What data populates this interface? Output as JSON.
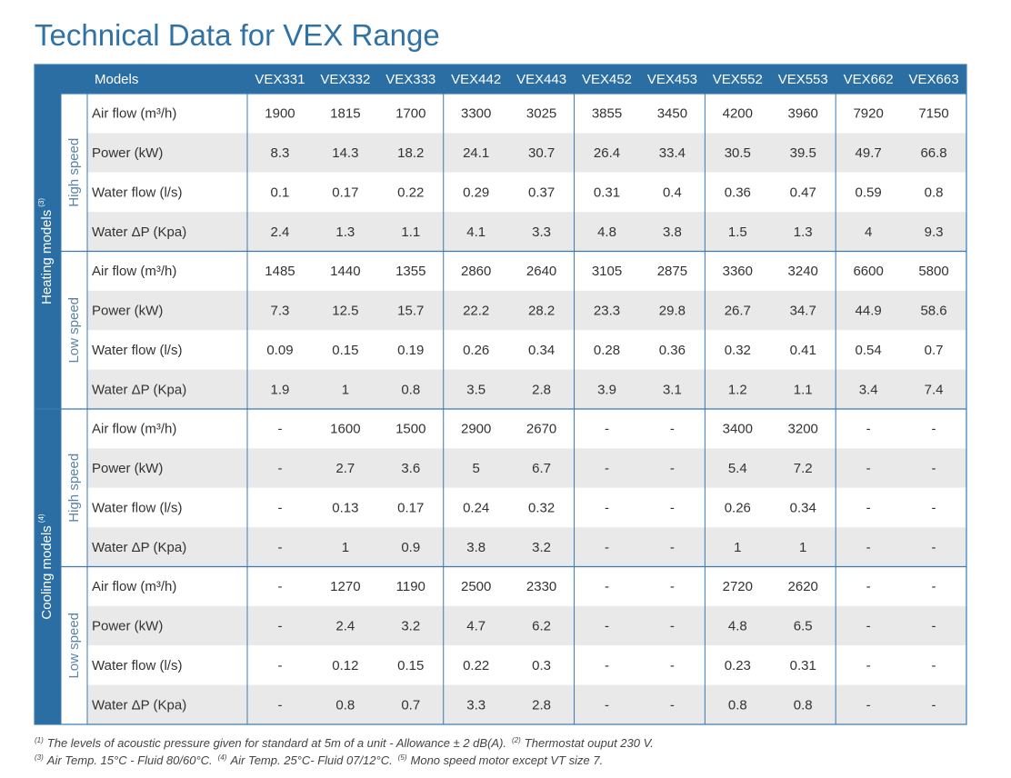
{
  "title": "Technical Data for VEX Range",
  "table": {
    "header": {
      "corner": "Models",
      "models": [
        "VEX331",
        "VEX332",
        "VEX333",
        "VEX442",
        "VEX443",
        "VEX452",
        "VEX453",
        "VEX552",
        "VEX553",
        "VEX662",
        "VEX663"
      ]
    },
    "groups": [
      {
        "label": "Heating models",
        "sup": "(3)",
        "speeds": [
          {
            "label": "High speed",
            "rows": [
              {
                "label": "Air flow (m³/h)",
                "values": [
                  1900,
                  1815,
                  1700,
                  3300,
                  3025,
                  3855,
                  3450,
                  4200,
                  3960,
                  7920,
                  7150
                ]
              },
              {
                "label": "Power (kW)",
                "values": [
                  8.3,
                  14.3,
                  18.2,
                  24.1,
                  30.7,
                  26.4,
                  33.4,
                  30.5,
                  39.5,
                  49.7,
                  66.8
                ]
              },
              {
                "label": "Water flow (l/s)",
                "values": [
                  0.1,
                  0.17,
                  0.22,
                  0.29,
                  0.37,
                  0.31,
                  0.4,
                  0.36,
                  0.47,
                  0.59,
                  0.8
                ]
              },
              {
                "label": "Water ΔP (Kpa)",
                "values": [
                  2.4,
                  1.3,
                  1.1,
                  4.1,
                  3.3,
                  4.8,
                  3.8,
                  1.5,
                  1.3,
                  4,
                  9.3
                ]
              }
            ]
          },
          {
            "label": "Low speed",
            "rows": [
              {
                "label": "Air flow (m³/h)",
                "values": [
                  1485,
                  1440,
                  1355,
                  2860,
                  2640,
                  3105,
                  2875,
                  3360,
                  3240,
                  6600,
                  5800
                ]
              },
              {
                "label": "Power (kW)",
                "values": [
                  7.3,
                  12.5,
                  15.7,
                  22.2,
                  28.2,
                  23.3,
                  29.8,
                  26.7,
                  34.7,
                  44.9,
                  58.6
                ]
              },
              {
                "label": "Water flow (l/s)",
                "values": [
                  0.09,
                  0.15,
                  0.19,
                  0.26,
                  0.34,
                  0.28,
                  0.36,
                  0.32,
                  0.41,
                  0.54,
                  0.7
                ]
              },
              {
                "label": "Water ΔP (Kpa)",
                "values": [
                  1.9,
                  1,
                  0.8,
                  3.5,
                  2.8,
                  3.9,
                  3.1,
                  1.2,
                  1.1,
                  3.4,
                  7.4
                ]
              }
            ]
          }
        ]
      },
      {
        "label": "Cooling models",
        "sup": "(4)",
        "speeds": [
          {
            "label": "High speed",
            "rows": [
              {
                "label": "Air flow (m³/h)",
                "values": [
                  "-",
                  1600,
                  1500,
                  2900,
                  2670,
                  "-",
                  "-",
                  3400,
                  3200,
                  "-",
                  "-"
                ]
              },
              {
                "label": "Power (kW)",
                "values": [
                  "-",
                  2.7,
                  3.6,
                  5,
                  6.7,
                  "-",
                  "-",
                  5.4,
                  7.2,
                  "-",
                  "-"
                ]
              },
              {
                "label": "Water flow (l/s)",
                "values": [
                  "-",
                  0.13,
                  0.17,
                  0.24,
                  0.32,
                  "-",
                  "-",
                  0.26,
                  0.34,
                  "-",
                  "-"
                ]
              },
              {
                "label": "Water ΔP (Kpa)",
                "values": [
                  "-",
                  1,
                  0.9,
                  3.8,
                  3.2,
                  "-",
                  "-",
                  1,
                  1,
                  "-",
                  "-"
                ]
              }
            ]
          },
          {
            "label": "Low speed",
            "rows": [
              {
                "label": "Air flow (m³/h)",
                "values": [
                  "-",
                  1270,
                  1190,
                  2500,
                  2330,
                  "-",
                  "-",
                  2720,
                  2620,
                  "-",
                  "-"
                ]
              },
              {
                "label": "Power (kW)",
                "values": [
                  "-",
                  2.4,
                  3.2,
                  4.7,
                  6.2,
                  "-",
                  "-",
                  4.8,
                  6.5,
                  "-",
                  "-"
                ]
              },
              {
                "label": "Water flow (l/s)",
                "values": [
                  "-",
                  0.12,
                  0.15,
                  0.22,
                  0.3,
                  "-",
                  "-",
                  0.23,
                  0.31,
                  "-",
                  "-"
                ]
              },
              {
                "label": "Water ΔP (Kpa)",
                "values": [
                  "-",
                  0.8,
                  0.7,
                  3.3,
                  2.8,
                  "-",
                  "-",
                  0.8,
                  0.8,
                  "-",
                  "-"
                ]
              }
            ]
          }
        ]
      }
    ]
  },
  "footnotes": [
    [
      {
        "sup": "(1)",
        "text": "The levels of acoustic pressure given for standard at 5m of a unit - Allowance  ± 2 dB(A)."
      },
      {
        "sup": "(2)",
        "text": "Thermostat ouput 230 V."
      }
    ],
    [
      {
        "sup": "(3)",
        "text": "Air Temp. 15°C - Fluid 80/60°C."
      },
      {
        "sup": "(4)",
        "text": "Air Temp. 25°C- Fluid 07/12°C."
      },
      {
        "sup": "(5)",
        "text": "Mono speed motor except VT size 7."
      }
    ]
  ]
}
